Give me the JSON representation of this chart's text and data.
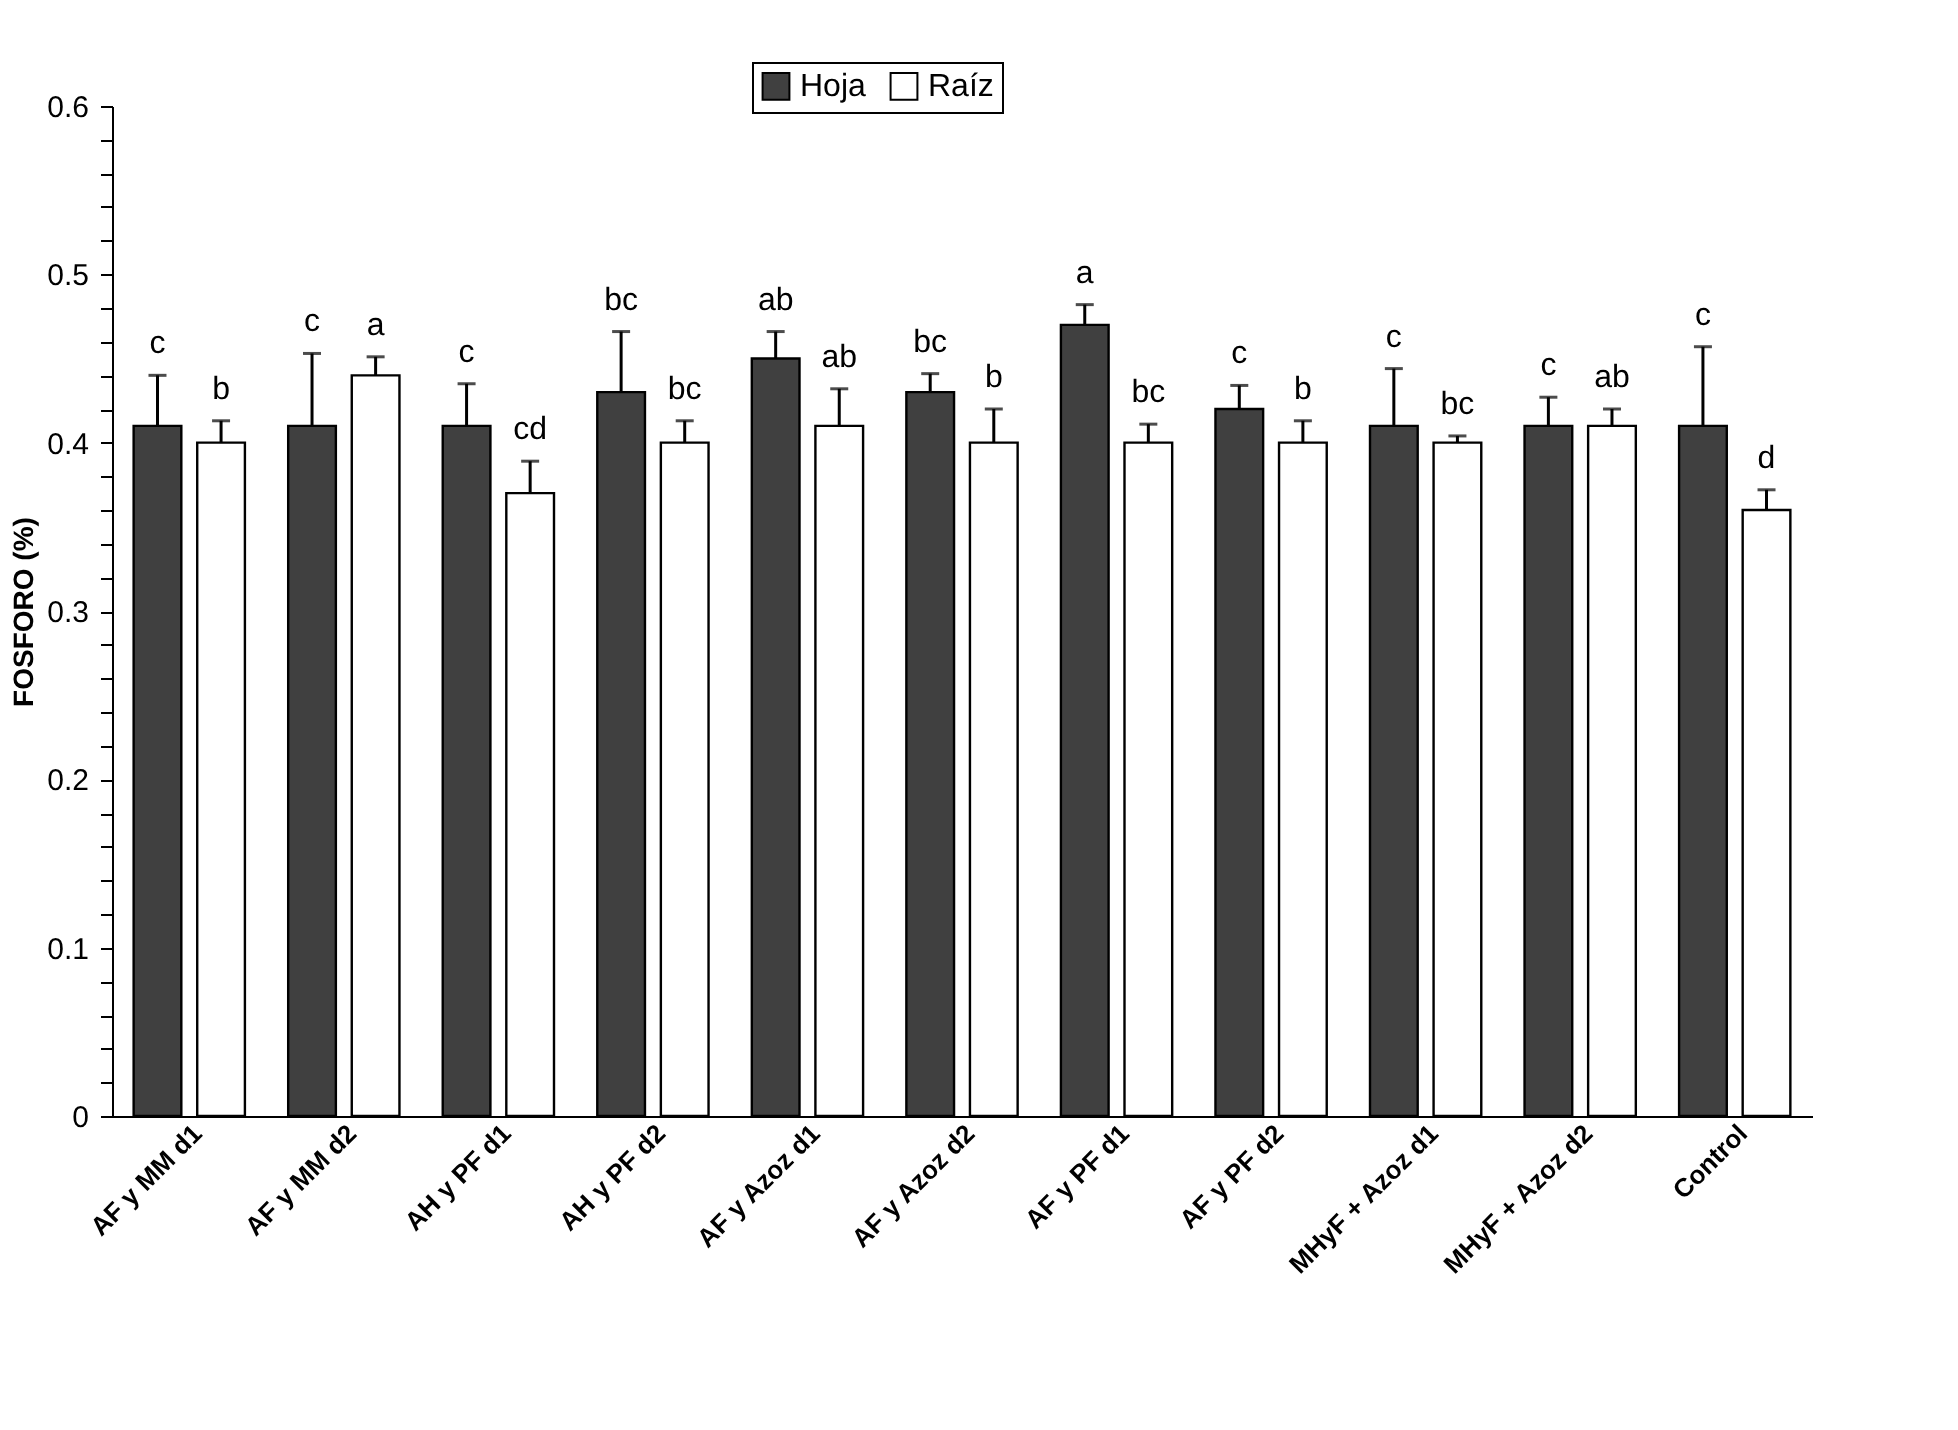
{
  "chart_data": {
    "type": "bar",
    "ylabel": "FOSFORO (%)",
    "categories": [
      "AF y MM d1",
      "AF y MM d2",
      "AH y PF d1",
      "AH y PF d2",
      "AF y Azoz d1",
      "AF y Azoz d2",
      "AF y PF d1",
      "AF y PF d2",
      "MHyF + Azoz d1",
      "MHyF + Azoz d2",
      "Control"
    ],
    "series": [
      {
        "name": "Hoja",
        "color": "#404040",
        "values": [
          0.41,
          0.41,
          0.41,
          0.43,
          0.45,
          0.43,
          0.47,
          0.42,
          0.41,
          0.41,
          0.41
        ],
        "errors": [
          [
            0.41,
            0.44
          ],
          [
            0.41,
            0.453
          ],
          [
            0.41,
            0.435
          ],
          [
            0.43,
            0.466
          ],
          [
            0.45,
            0.466
          ],
          [
            0.43,
            0.441
          ],
          [
            0.47,
            0.482
          ],
          [
            0.42,
            0.434
          ],
          [
            0.41,
            0.444
          ],
          [
            0.41,
            0.427
          ],
          [
            0.41,
            0.457
          ]
        ],
        "value_labels": [
          "c",
          "c",
          "c",
          "bc",
          "ab",
          "bc",
          "a",
          "c",
          "c",
          "c",
          "c"
        ]
      },
      {
        "name": "Raíz",
        "color": "#ffffff",
        "values": [
          0.4,
          0.44,
          0.37,
          0.4,
          0.41,
          0.4,
          0.4,
          0.4,
          0.4,
          0.41,
          0.36
        ],
        "errors": [
          [
            0.4,
            0.413
          ],
          [
            0.44,
            0.451
          ],
          [
            0.37,
            0.389
          ],
          [
            0.4,
            0.413
          ],
          [
            0.41,
            0.432
          ],
          [
            0.4,
            0.42
          ],
          [
            0.4,
            0.411
          ],
          [
            0.4,
            0.413
          ],
          [
            0.4,
            0.404
          ],
          [
            0.41,
            0.42
          ],
          [
            0.36,
            0.372
          ]
        ],
        "value_labels": [
          "b",
          "a",
          "cd",
          "bc",
          "ab",
          "b",
          "bc",
          "b",
          "bc",
          "ab",
          "d"
        ]
      }
    ],
    "ylim": [
      0,
      0.6
    ],
    "yticks": [
      0,
      {
        "value": 0.02,
        "label": null
      },
      {
        "value": 0.04,
        "label": null
      },
      {
        "value": 0.06,
        "label": null
      },
      {
        "value": 0.08,
        "label": null
      },
      0.1,
      {
        "value": 0.12,
        "label": null
      },
      {
        "value": 0.14,
        "label": null
      },
      {
        "value": 0.16,
        "label": null
      },
      {
        "value": 0.18,
        "label": null
      },
      0.2,
      {
        "value": 0.22,
        "label": null
      },
      {
        "value": 0.24,
        "label": null
      },
      {
        "value": 0.26,
        "label": null
      },
      {
        "value": 0.28,
        "label": null
      },
      0.3,
      {
        "value": 0.32,
        "label": null
      },
      {
        "value": 0.34,
        "label": null
      },
      {
        "value": 0.36,
        "label": null
      },
      {
        "value": 0.38,
        "label": null
      },
      0.4,
      {
        "value": 0.42,
        "label": null
      },
      {
        "value": 0.44,
        "label": null
      },
      {
        "value": 0.46,
        "label": null
      },
      {
        "value": 0.48,
        "label": null
      },
      0.5,
      {
        "value": 0.52,
        "label": null
      },
      {
        "value": 0.54,
        "label": null
      },
      {
        "value": 0.56,
        "label": null
      },
      {
        "value": 0.58,
        "label": null
      },
      0.6
    ],
    "grid": false,
    "legend": "top"
  }
}
